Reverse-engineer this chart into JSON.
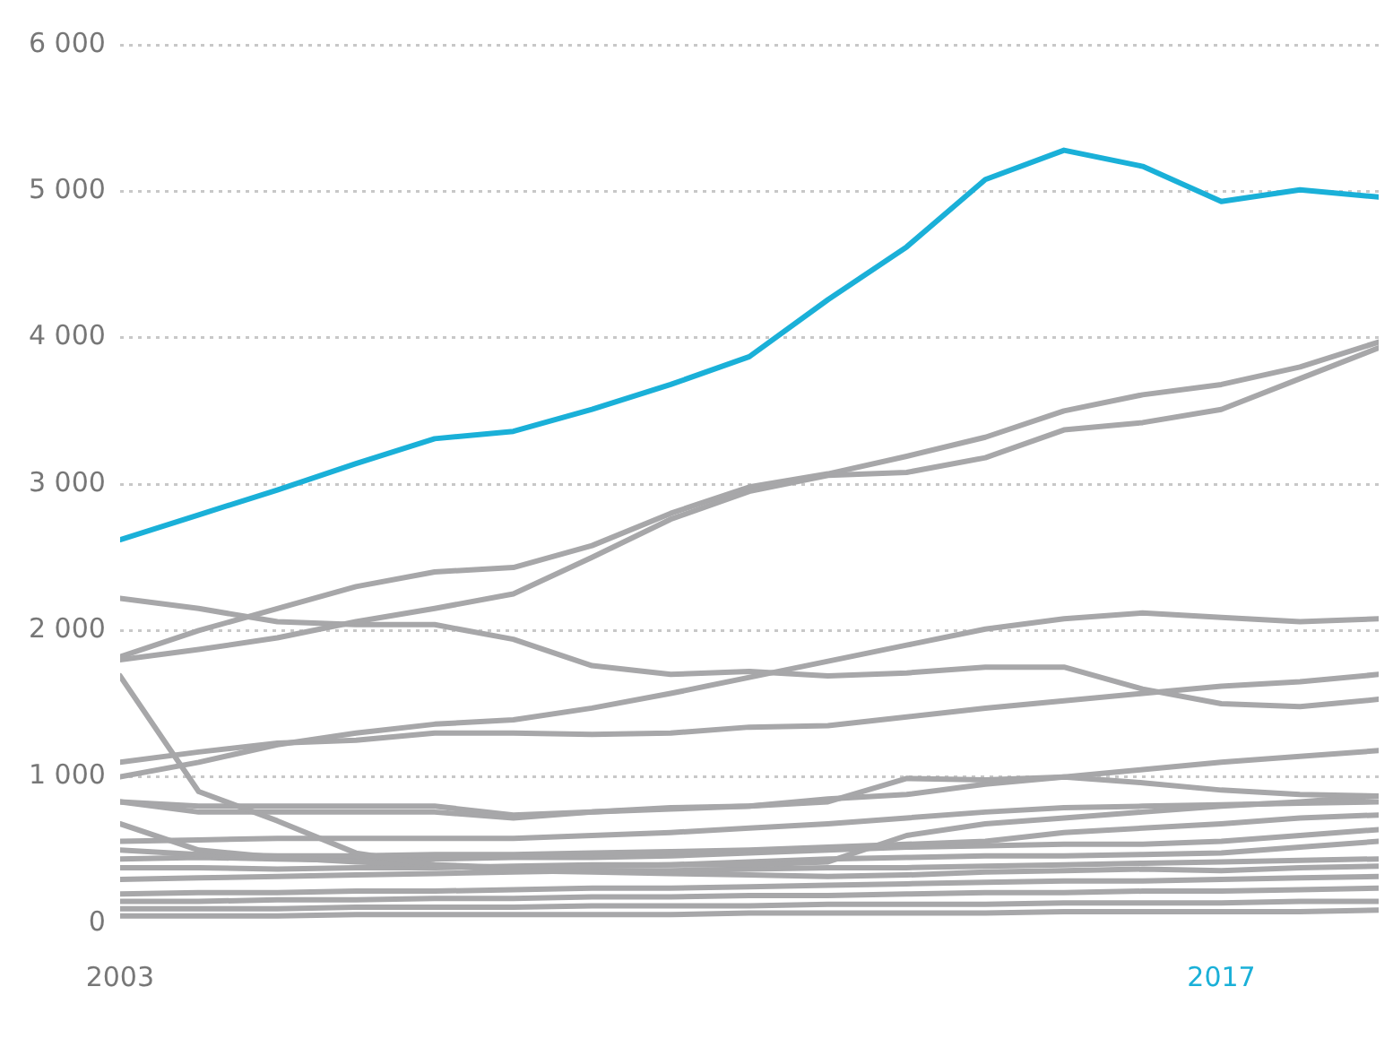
{
  "chart_data": {
    "type": "line",
    "x": [
      2003,
      2004,
      2005,
      2006,
      2007,
      2008,
      2009,
      2010,
      2011,
      2012,
      2013,
      2014,
      2015,
      2016,
      2017,
      2018,
      2019
    ],
    "xlim": [
      2003,
      2019
    ],
    "xticks": [
      2003,
      2017
    ],
    "ylim": [
      0,
      6000
    ],
    "yticks": [
      {
        "value": 0,
        "label": "0"
      },
      {
        "value": 1000,
        "label": "1 000"
      },
      {
        "value": 2000,
        "label": "2 000"
      },
      {
        "value": 3000,
        "label": "3 000"
      },
      {
        "value": 4000,
        "label": "4 000"
      },
      {
        "value": 5000,
        "label": "5 000"
      },
      {
        "value": 6000,
        "label": "6 000"
      }
    ],
    "grid": "y",
    "legend": false,
    "marker": "none",
    "line_style": "solid",
    "series": [
      {
        "color": "#a7a7a9",
        "values": [
          1800,
          1870,
          1950,
          2060,
          2150,
          2250,
          2500,
          2760,
          2950,
          3060,
          3080,
          3180,
          3370,
          3420,
          3510,
          3720,
          3930
        ]
      },
      {
        "color": "#a7a7a9",
        "values": [
          1820,
          2000,
          2150,
          2300,
          2400,
          2430,
          2580,
          2800,
          2980,
          3070,
          3190,
          3320,
          3500,
          3610,
          3680,
          3800,
          3970
        ]
      },
      {
        "color": "#a7a7a9",
        "values": [
          2220,
          2150,
          2060,
          2040,
          2040,
          1940,
          1760,
          1700,
          1720,
          1690,
          1710,
          1750,
          1750,
          1600,
          1500,
          1480,
          1530
        ]
      },
      {
        "color": "#a7a7a9",
        "values": [
          1000,
          1100,
          1220,
          1300,
          1360,
          1390,
          1470,
          1570,
          1680,
          1790,
          1900,
          2010,
          2080,
          2120,
          2090,
          2060,
          2080
        ]
      },
      {
        "color": "#a7a7a9",
        "values": [
          1100,
          1170,
          1230,
          1250,
          1300,
          1300,
          1290,
          1300,
          1340,
          1350,
          1410,
          1470,
          1520,
          1570,
          1620,
          1650,
          1700
        ]
      },
      {
        "color": "#a7a7a9",
        "values": [
          1690,
          900,
          700,
          480,
          400,
          360,
          350,
          340,
          330,
          320,
          330,
          350,
          360,
          370,
          360,
          380,
          390
        ]
      },
      {
        "color": "#a7a7a9",
        "values": [
          830,
          760,
          760,
          760,
          760,
          720,
          760,
          780,
          800,
          830,
          990,
          980,
          1000,
          960,
          910,
          880,
          870
        ]
      },
      {
        "color": "#a7a7a9",
        "values": [
          830,
          800,
          800,
          800,
          800,
          740,
          760,
          790,
          800,
          850,
          880,
          950,
          1000,
          1050,
          1100,
          1140,
          1180
        ]
      },
      {
        "color": "#a7a7a9",
        "values": [
          680,
          500,
          450,
          420,
          400,
          380,
          390,
          400,
          400,
          420,
          600,
          680,
          720,
          760,
          800,
          830,
          870
        ]
      },
      {
        "color": "#a7a7a9",
        "values": [
          560,
          570,
          580,
          580,
          580,
          580,
          600,
          620,
          650,
          680,
          720,
          760,
          790,
          800,
          810,
          820,
          830
        ]
      },
      {
        "color": "#a7a7a9",
        "values": [
          500,
          470,
          460,
          460,
          470,
          470,
          480,
          490,
          500,
          520,
          540,
          560,
          620,
          650,
          680,
          720,
          740
        ]
      },
      {
        "color": "#a7a7a9",
        "values": [
          440,
          450,
          440,
          430,
          440,
          450,
          450,
          460,
          480,
          500,
          520,
          530,
          540,
          540,
          560,
          600,
          640
        ]
      },
      {
        "color": "#a7a7a9",
        "values": [
          380,
          380,
          370,
          380,
          380,
          390,
          400,
          400,
          420,
          440,
          450,
          460,
          460,
          470,
          480,
          520,
          560
        ]
      },
      {
        "color": "#a7a7a9",
        "values": [
          300,
          310,
          320,
          330,
          340,
          350,
          360,
          360,
          370,
          380,
          380,
          390,
          400,
          410,
          420,
          430,
          440
        ]
      },
      {
        "color": "#a7a7a9",
        "values": [
          200,
          210,
          210,
          220,
          220,
          230,
          240,
          240,
          250,
          260,
          270,
          280,
          290,
          290,
          300,
          310,
          320
        ]
      },
      {
        "color": "#a7a7a9",
        "values": [
          150,
          150,
          160,
          160,
          170,
          170,
          180,
          180,
          190,
          190,
          200,
          210,
          210,
          220,
          220,
          230,
          240
        ]
      },
      {
        "color": "#a7a7a9",
        "values": [
          100,
          100,
          100,
          110,
          110,
          110,
          120,
          120,
          120,
          130,
          130,
          130,
          140,
          140,
          140,
          150,
          150
        ]
      },
      {
        "color": "#a7a7a9",
        "values": [
          50,
          50,
          50,
          60,
          60,
          60,
          60,
          60,
          70,
          70,
          70,
          70,
          80,
          80,
          80,
          80,
          90
        ]
      },
      {
        "color": "#1ab0d8",
        "values": [
          2620,
          2790,
          2960,
          3140,
          3310,
          3360,
          3510,
          3680,
          3870,
          4260,
          4620,
          5080,
          5280,
          5170,
          4930,
          5010,
          4960
        ]
      }
    ]
  }
}
